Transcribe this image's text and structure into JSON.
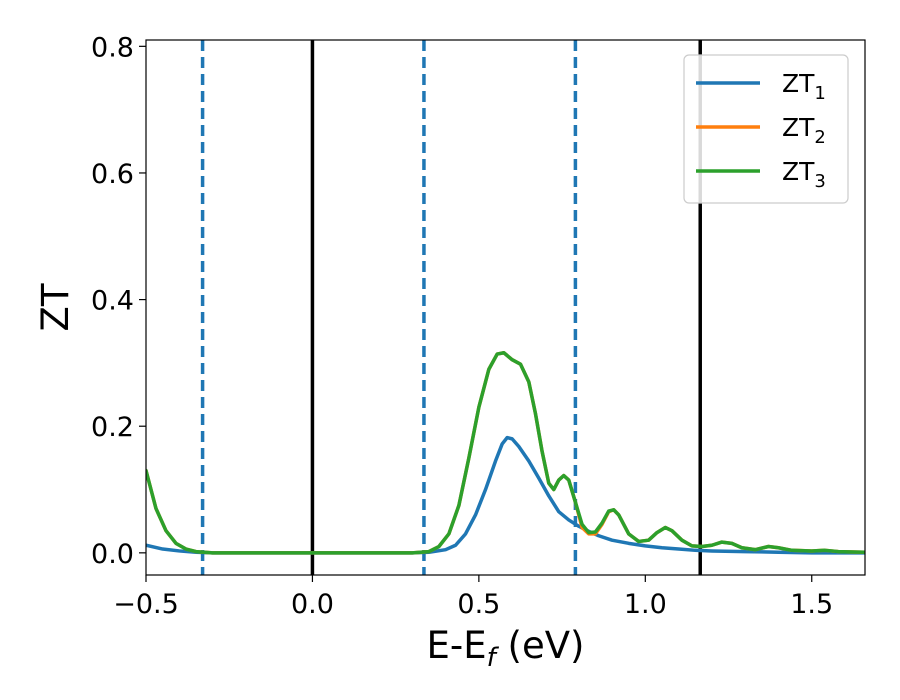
{
  "chart_data": {
    "type": "line",
    "title": "",
    "xlabel": "E-E",
    "xlabel_subscript": "f",
    "xlabel_unit": " (eV)",
    "ylabel": "ZT",
    "xlim": [
      -0.5,
      1.66
    ],
    "ylim": [
      -0.035,
      0.81
    ],
    "xticks": [
      -0.5,
      0.0,
      0.5,
      1.0,
      1.5
    ],
    "xtick_labels": [
      "−0.5",
      "0.0",
      "0.5",
      "1.0",
      "1.5"
    ],
    "yticks": [
      0.0,
      0.2,
      0.4,
      0.6,
      0.8
    ],
    "ytick_labels": [
      "0.0",
      "0.2",
      "0.4",
      "0.6",
      "0.8"
    ],
    "grid": false,
    "legend_position": "top-right",
    "vertical_lines": [
      {
        "x": -0.33,
        "style": "dashed",
        "color": "#1f77b4"
      },
      {
        "x": 0.0,
        "style": "solid",
        "color": "#000000"
      },
      {
        "x": 0.335,
        "style": "dashed",
        "color": "#1f77b4"
      },
      {
        "x": 0.79,
        "style": "dashed",
        "color": "#1f77b4"
      },
      {
        "x": 1.165,
        "style": "solid",
        "color": "#000000"
      }
    ],
    "series": [
      {
        "name": "ZT",
        "subscript": "1",
        "color": "#1f77b4",
        "points": [
          [
            -0.5,
            0.012
          ],
          [
            -0.45,
            0.006
          ],
          [
            -0.4,
            0.003
          ],
          [
            -0.35,
            0.001
          ],
          [
            -0.3,
            0.0
          ],
          [
            0.0,
            0.0
          ],
          [
            0.3,
            0.0
          ],
          [
            0.35,
            0.001
          ],
          [
            0.4,
            0.005
          ],
          [
            0.43,
            0.012
          ],
          [
            0.46,
            0.03
          ],
          [
            0.49,
            0.06
          ],
          [
            0.52,
            0.1
          ],
          [
            0.55,
            0.145
          ],
          [
            0.57,
            0.172
          ],
          [
            0.585,
            0.182
          ],
          [
            0.6,
            0.18
          ],
          [
            0.62,
            0.168
          ],
          [
            0.65,
            0.145
          ],
          [
            0.68,
            0.118
          ],
          [
            0.71,
            0.09
          ],
          [
            0.74,
            0.065
          ],
          [
            0.77,
            0.052
          ],
          [
            0.8,
            0.042
          ],
          [
            0.83,
            0.034
          ],
          [
            0.86,
            0.027
          ],
          [
            0.9,
            0.02
          ],
          [
            0.95,
            0.015
          ],
          [
            1.0,
            0.011
          ],
          [
            1.05,
            0.008
          ],
          [
            1.1,
            0.006
          ],
          [
            1.15,
            0.004
          ],
          [
            1.2,
            0.003
          ],
          [
            1.3,
            0.002
          ],
          [
            1.4,
            0.001
          ],
          [
            1.5,
            0.0
          ],
          [
            1.66,
            0.0
          ]
        ]
      },
      {
        "name": "ZT",
        "subscript": "2",
        "color": "#ff7f0e",
        "points": [
          [
            -0.5,
            0.13
          ],
          [
            -0.47,
            0.07
          ],
          [
            -0.44,
            0.035
          ],
          [
            -0.41,
            0.015
          ],
          [
            -0.38,
            0.006
          ],
          [
            -0.35,
            0.002
          ],
          [
            -0.3,
            0.0
          ],
          [
            0.0,
            0.0
          ],
          [
            0.3,
            0.0
          ],
          [
            0.35,
            0.002
          ],
          [
            0.38,
            0.01
          ],
          [
            0.41,
            0.03
          ],
          [
            0.44,
            0.075
          ],
          [
            0.47,
            0.15
          ],
          [
            0.5,
            0.23
          ],
          [
            0.53,
            0.29
          ],
          [
            0.555,
            0.314
          ],
          [
            0.575,
            0.316
          ],
          [
            0.6,
            0.305
          ],
          [
            0.625,
            0.298
          ],
          [
            0.65,
            0.27
          ],
          [
            0.67,
            0.22
          ],
          [
            0.69,
            0.16
          ],
          [
            0.71,
            0.11
          ],
          [
            0.725,
            0.1
          ],
          [
            0.74,
            0.115
          ],
          [
            0.755,
            0.122
          ],
          [
            0.77,
            0.115
          ],
          [
            0.79,
            0.08
          ],
          [
            0.81,
            0.04
          ],
          [
            0.83,
            0.03
          ],
          [
            0.85,
            0.03
          ],
          [
            0.87,
            0.045
          ],
          [
            0.89,
            0.065
          ],
          [
            0.905,
            0.068
          ],
          [
            0.92,
            0.06
          ],
          [
            0.95,
            0.03
          ],
          [
            0.98,
            0.018
          ],
          [
            1.01,
            0.02
          ],
          [
            1.035,
            0.032
          ],
          [
            1.06,
            0.04
          ],
          [
            1.08,
            0.035
          ],
          [
            1.11,
            0.02
          ],
          [
            1.14,
            0.011
          ],
          [
            1.17,
            0.01
          ],
          [
            1.2,
            0.012
          ],
          [
            1.23,
            0.017
          ],
          [
            1.26,
            0.015
          ],
          [
            1.29,
            0.008
          ],
          [
            1.33,
            0.005
          ],
          [
            1.37,
            0.01
          ],
          [
            1.4,
            0.008
          ],
          [
            1.44,
            0.004
          ],
          [
            1.5,
            0.003
          ],
          [
            1.54,
            0.004
          ],
          [
            1.58,
            0.002
          ],
          [
            1.66,
            0.001
          ]
        ]
      },
      {
        "name": "ZT",
        "subscript": "3",
        "color": "#2ca02c",
        "points": [
          [
            -0.5,
            0.13
          ],
          [
            -0.47,
            0.07
          ],
          [
            -0.44,
            0.035
          ],
          [
            -0.41,
            0.015
          ],
          [
            -0.38,
            0.006
          ],
          [
            -0.35,
            0.002
          ],
          [
            -0.3,
            0.0
          ],
          [
            0.0,
            0.0
          ],
          [
            0.3,
            0.0
          ],
          [
            0.35,
            0.002
          ],
          [
            0.38,
            0.01
          ],
          [
            0.41,
            0.03
          ],
          [
            0.44,
            0.075
          ],
          [
            0.47,
            0.15
          ],
          [
            0.5,
            0.23
          ],
          [
            0.53,
            0.29
          ],
          [
            0.555,
            0.314
          ],
          [
            0.575,
            0.316
          ],
          [
            0.6,
            0.305
          ],
          [
            0.625,
            0.298
          ],
          [
            0.65,
            0.27
          ],
          [
            0.67,
            0.22
          ],
          [
            0.69,
            0.16
          ],
          [
            0.71,
            0.11
          ],
          [
            0.725,
            0.1
          ],
          [
            0.74,
            0.115
          ],
          [
            0.755,
            0.122
          ],
          [
            0.77,
            0.115
          ],
          [
            0.79,
            0.08
          ],
          [
            0.81,
            0.045
          ],
          [
            0.83,
            0.032
          ],
          [
            0.85,
            0.033
          ],
          [
            0.87,
            0.047
          ],
          [
            0.89,
            0.066
          ],
          [
            0.905,
            0.068
          ],
          [
            0.92,
            0.06
          ],
          [
            0.95,
            0.03
          ],
          [
            0.98,
            0.018
          ],
          [
            1.01,
            0.02
          ],
          [
            1.035,
            0.032
          ],
          [
            1.06,
            0.04
          ],
          [
            1.08,
            0.035
          ],
          [
            1.11,
            0.02
          ],
          [
            1.14,
            0.011
          ],
          [
            1.17,
            0.01
          ],
          [
            1.2,
            0.012
          ],
          [
            1.23,
            0.017
          ],
          [
            1.26,
            0.015
          ],
          [
            1.29,
            0.008
          ],
          [
            1.33,
            0.005
          ],
          [
            1.37,
            0.01
          ],
          [
            1.4,
            0.008
          ],
          [
            1.44,
            0.004
          ],
          [
            1.5,
            0.003
          ],
          [
            1.54,
            0.004
          ],
          [
            1.58,
            0.002
          ],
          [
            1.66,
            0.001
          ]
        ]
      }
    ]
  }
}
